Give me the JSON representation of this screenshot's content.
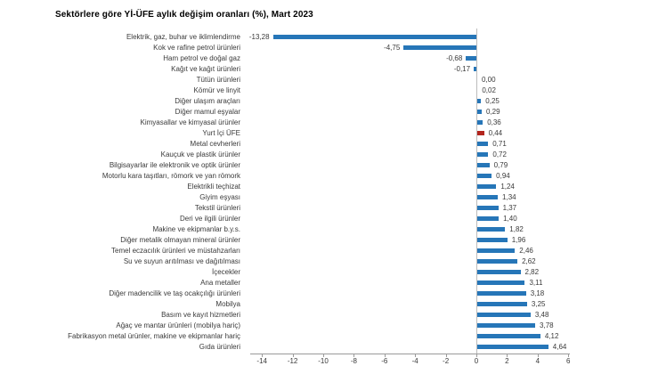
{
  "chart_data": {
    "type": "bar",
    "orientation": "horizontal",
    "title": "Sektörlere göre Yİ-ÜFE aylık değişim oranları (%), Mart 2023",
    "unit": "%",
    "categories": [
      "Elektrik, gaz, buhar ve iklimlendirme",
      "Kok ve rafine petrol ürünleri",
      "Ham petrol ve doğal gaz",
      "Kağıt ve kağıt ürünleri",
      "Tütün ürünleri",
      "Kömür ve linyit",
      "Diğer ulaşım araçları",
      "Diğer mamul eşyalar",
      "Kimyasallar ve kimyasal ürünler",
      "Yurt İçi ÜFE",
      "Metal cevherleri",
      "Kauçuk ve plastik ürünler",
      "Bilgisayarlar ile elektronik ve optik ürünler",
      "Motorlu kara taşıtları, römork ve yan römork",
      "Elektrikli teçhizat",
      "Giyim eşyası",
      "Tekstil ürünleri",
      "Deri ve ilgili ürünler",
      "Makine ve ekipmanlar b.y.s.",
      "Diğer metalik olmayan mineral ürünler",
      "Temel eczacılık ürünleri ve müstahzarları",
      "Su ve suyun arıtılması ve dağıtılması",
      "İçecekler",
      "Ana metaller",
      "Diğer madencilik ve taş ocakçılığı ürünleri",
      "Mobilya",
      "Basım ve kayıt hizmetleri",
      "Ağaç ve mantar ürünleri (mobilya hariç)",
      "Fabrikasyon metal ürünler, makine ve ekipmanlar hariç",
      "Gıda ürünleri"
    ],
    "values": [
      -13.28,
      -4.75,
      -0.68,
      -0.17,
      0.0,
      0.02,
      0.25,
      0.29,
      0.36,
      0.44,
      0.71,
      0.72,
      0.79,
      0.94,
      1.24,
      1.34,
      1.37,
      1.4,
      1.82,
      1.96,
      2.46,
      2.62,
      2.82,
      3.11,
      3.18,
      3.25,
      3.48,
      3.78,
      4.12,
      4.64
    ],
    "value_labels": [
      "-13,28",
      "-4,75",
      "-0,68",
      "-0,17",
      "0,00",
      "0,02",
      "0,25",
      "0,29",
      "0,36",
      "0,44",
      "0,71",
      "0,72",
      "0,79",
      "0,94",
      "1,24",
      "1,34",
      "1,37",
      "1,40",
      "1,82",
      "1,96",
      "2,46",
      "2,62",
      "2,82",
      "3,11",
      "3,18",
      "3,25",
      "3,48",
      "3,78",
      "4,12",
      "4,64"
    ],
    "highlight_category": "Yurt İçi ÜFE",
    "highlight_index": 9,
    "x_ticks": [
      -14,
      -12,
      -10,
      -8,
      -6,
      -4,
      -2,
      0,
      2,
      4,
      6
    ],
    "x_tick_labels": [
      "-14",
      "-12",
      "-10",
      "-8",
      "-6",
      "-4",
      "-2",
      "0",
      "2",
      "4",
      "6"
    ],
    "xlim": [
      -14.7,
      6
    ],
    "legend": "none",
    "gridlines": "zero-line-only",
    "xlabel": "",
    "ylabel": "",
    "colors": {
      "bar": "#2676b8",
      "highlight": "#b3251e",
      "axis_line": "#9a9a9a",
      "zero_line": "#bcbcbc",
      "text": "#3a3a3a",
      "title_text": "#000000"
    }
  }
}
